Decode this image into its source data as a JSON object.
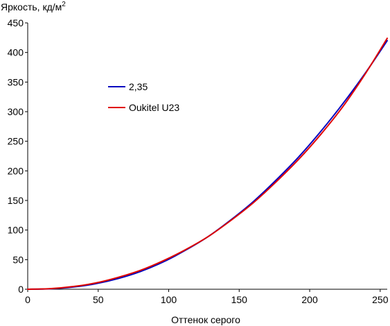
{
  "chart_data": {
    "type": "line",
    "ylabel": "Яркость, кд/м",
    "ylabel_sup": "2",
    "xlabel": "Оттенок серого",
    "xlim": [
      0,
      255
    ],
    "ylim": [
      0,
      450
    ],
    "x_ticks": [
      0,
      50,
      100,
      150,
      200,
      250
    ],
    "y_ticks": [
      0,
      50,
      100,
      150,
      200,
      250,
      300,
      350,
      400,
      450
    ],
    "grid": false,
    "legend_position": "center-left",
    "series": [
      {
        "name": "2,35",
        "color": "#0000c0",
        "x": [
          0,
          16,
          32,
          48,
          64,
          80,
          96,
          112,
          128,
          144,
          160,
          176,
          192,
          208,
          224,
          240,
          255
        ],
        "y": [
          0,
          0.7,
          3.6,
          9.2,
          18,
          30,
          46,
          66,
          89,
          117,
          148,
          184,
          223,
          267,
          315,
          367,
          420
        ]
      },
      {
        "name": "Oukitel U23",
        "color": "#e00000",
        "x": [
          0,
          16,
          32,
          48,
          64,
          80,
          96,
          112,
          128,
          144,
          160,
          176,
          192,
          208,
          224,
          240,
          255
        ],
        "y": [
          0,
          1,
          4.5,
          10.5,
          20,
          32,
          48,
          67,
          89,
          116,
          146,
          181,
          219,
          262,
          310,
          366,
          424
        ]
      }
    ]
  }
}
